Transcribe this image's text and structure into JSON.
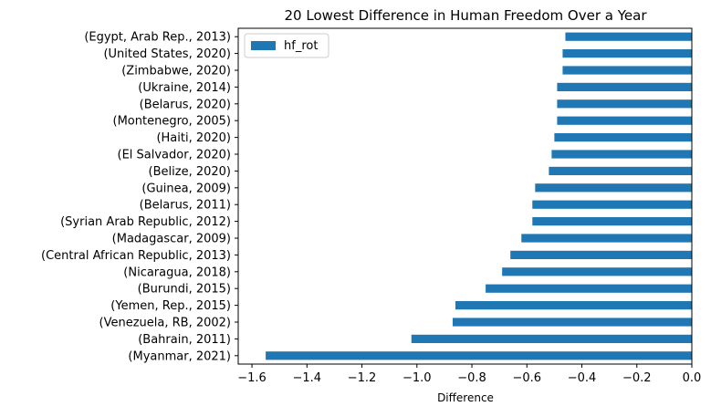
{
  "chart_data": {
    "type": "bar",
    "orientation": "horizontal",
    "title": "20 Lowest Difference in Human Freedom Over a Year",
    "xlabel": "Difference",
    "ylabel": "",
    "xlim": [
      -1.65,
      0.0
    ],
    "x_ticks": [
      "−1.6",
      "−1.4",
      "−1.2",
      "−1.0",
      "−0.8",
      "−0.6",
      "−0.4",
      "−0.2",
      "0.0"
    ],
    "x_tick_values": [
      -1.6,
      -1.4,
      -1.2,
      -1.0,
      -0.8,
      -0.6,
      -0.4,
      -0.2,
      0.0
    ],
    "grid": false,
    "legend_position": "top-left",
    "categories": [
      "(Egypt, Arab Rep., 2013)",
      "(United States, 2020)",
      "(Zimbabwe, 2020)",
      "(Ukraine, 2014)",
      "(Belarus, 2020)",
      "(Montenegro, 2005)",
      "(Haiti, 2020)",
      "(El Salvador, 2020)",
      "(Belize, 2020)",
      "(Guinea, 2009)",
      "(Belarus, 2011)",
      "(Syrian Arab Republic, 2012)",
      "(Madagascar, 2009)",
      "(Central African Republic, 2013)",
      "(Nicaragua, 2018)",
      "(Burundi, 2015)",
      "(Yemen, Rep., 2015)",
      "(Venezuela, RB, 2002)",
      "(Bahrain, 2011)",
      "(Myanmar, 2021)"
    ],
    "series": [
      {
        "name": "hf_rot",
        "color": "#1f77b4",
        "values": [
          -0.46,
          -0.47,
          -0.47,
          -0.49,
          -0.49,
          -0.49,
          -0.5,
          -0.51,
          -0.52,
          -0.57,
          -0.58,
          -0.58,
          -0.62,
          -0.66,
          -0.69,
          -0.75,
          -0.86,
          -0.87,
          -1.02,
          -1.55
        ]
      }
    ]
  }
}
